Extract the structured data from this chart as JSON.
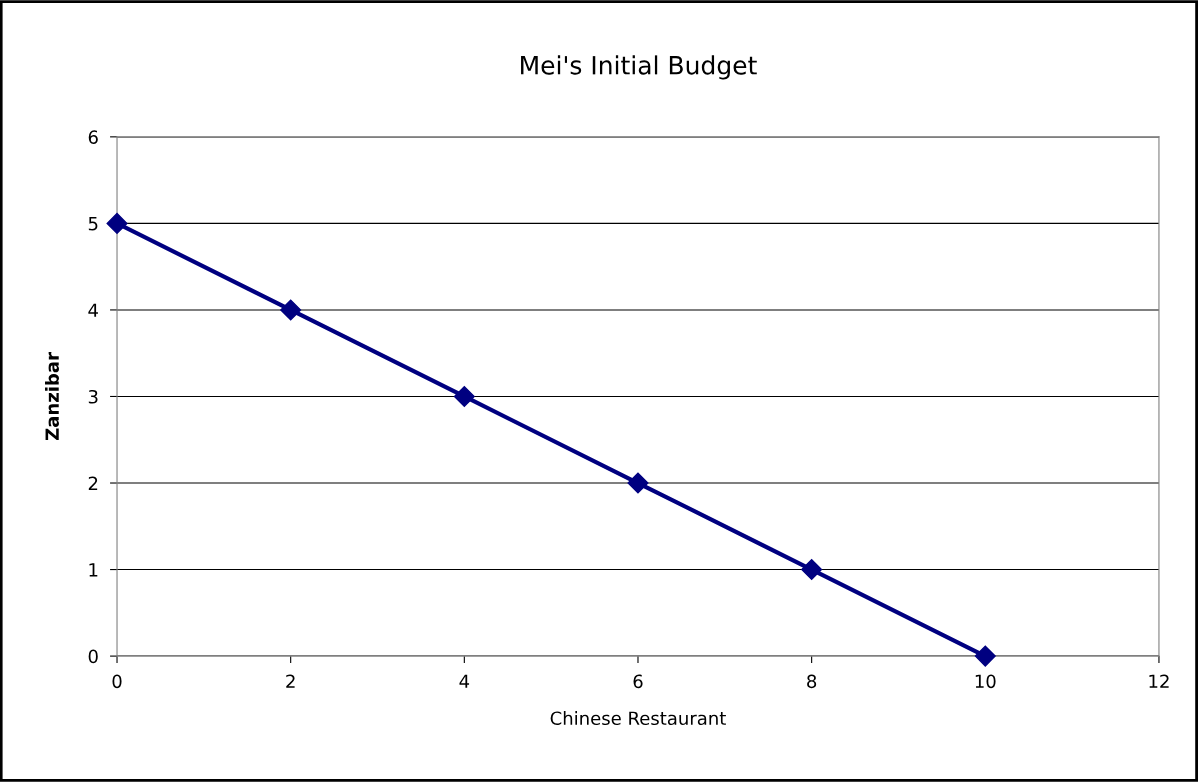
{
  "chart_data": {
    "type": "line",
    "title": "Mei's Initial Budget",
    "xlabel": "Chinese Restaurant",
    "ylabel": "Zanzibar",
    "x": [
      0,
      2,
      4,
      6,
      8,
      10
    ],
    "series": [
      {
        "color": "#000080",
        "values": [
          5,
          4,
          3,
          2,
          1,
          0
        ]
      }
    ],
    "xlim": [
      0,
      12
    ],
    "xticks": [
      0,
      2,
      4,
      6,
      8,
      10,
      12
    ],
    "ylim": [
      0,
      6
    ],
    "yticks": [
      0,
      1,
      2,
      3,
      4,
      5,
      6
    ],
    "grid": "y",
    "marker": "diamond",
    "line_style": "solid",
    "legend": false
  }
}
